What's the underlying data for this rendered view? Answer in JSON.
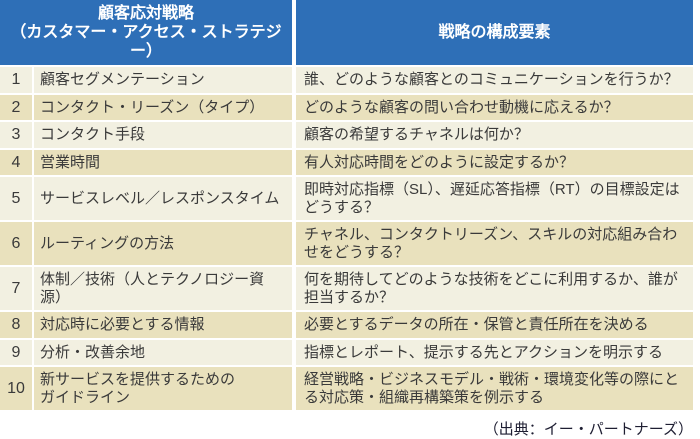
{
  "header": {
    "left_title": "顧客応対戦略\n（カスタマー・アクセス・ストラテジー）",
    "right_title": "戦略の構成要素"
  },
  "rows": [
    {
      "num": "1",
      "label": "顧客セグメンテーション",
      "detail": "誰、どのような顧客とのコミュニケーションを行うか？"
    },
    {
      "num": "2",
      "label": "コンタクト・リーズン（タイプ）",
      "detail": "どのような顧客の問い合わせ動機に応えるか？"
    },
    {
      "num": "3",
      "label": "コンタクト手段",
      "detail": "顧客の希望するチャネルは何か？"
    },
    {
      "num": "4",
      "label": "営業時間",
      "detail": "有人対応時間をどのように設定するか？"
    },
    {
      "num": "5",
      "label": "サービスレベル／レスポンスタイム",
      "detail": "即時対応指標（SL）、遅延応答指標（RT）の目標設定はどうする？"
    },
    {
      "num": "6",
      "label": "ルーティングの方法",
      "detail": "チャネル、コンタクトリーズン、スキルの対応組み合わせをどうする？"
    },
    {
      "num": "7",
      "label": "体制／技術（人とテクノロジー資源）",
      "detail": "何を期待してどのような技術をどこに利用するか、誰が担当するか？"
    },
    {
      "num": "8",
      "label": "対応時に必要とする情報",
      "detail": "必要とするデータの所在・保管と責任所在を決める"
    },
    {
      "num": "9",
      "label": "分析・改善余地",
      "detail": "指標とレポート、提示する先とアクションを明示する"
    },
    {
      "num": "10",
      "label": "新サービスを提供するための\nガイドライン",
      "detail": "経営戦略・ビジネスモデル・戦術・環境変化等の際にとる対応策・組織再構築策を例示する"
    }
  ],
  "footer": {
    "source": "（出典：イー・パートナーズ）"
  },
  "colors": {
    "header_bg": "#2e6fb7",
    "row_light": "#f2f0e1",
    "row_dark": "#e9e1bd",
    "separator": "#ffffff",
    "body_text": "#3a3a3a",
    "header_text": "#ffffff",
    "source_text": "#1e1e32"
  },
  "chart_data": {
    "type": "table",
    "title": "顧客応対戦略（カスタマー・アクセス・ストラテジー）",
    "columns": [
      "顧客応対戦略（カスタマー・アクセス・ストラテジー）",
      "戦略の構成要素"
    ],
    "rows": [
      [
        "1",
        "顧客セグメンテーション",
        "誰、どのような顧客とのコミュニケーションを行うか？"
      ],
      [
        "2",
        "コンタクト・リーズン（タイプ）",
        "どのような顧客の問い合わせ動機に応えるか？"
      ],
      [
        "3",
        "コンタクト手段",
        "顧客の希望するチャネルは何か？"
      ],
      [
        "4",
        "営業時間",
        "有人対応時間をどのように設定するか？"
      ],
      [
        "5",
        "サービスレベル／レスポンスタイム",
        "即時対応指標（SL）、遅延応答指標（RT）の目標設定はどうする？"
      ],
      [
        "6",
        "ルーティングの方法",
        "チャネル、コンタクトリーズン、スキルの対応組み合わせをどうする？"
      ],
      [
        "7",
        "体制／技術（人とテクノロジー資源）",
        "何を期待してどのような技術をどこに利用するか、誰が担当するか？"
      ],
      [
        "8",
        "対応時に必要とする情報",
        "必要とするデータの所在・保管と責任所在を決める"
      ],
      [
        "9",
        "分析・改善余地",
        "指標とレポート、提示する先とアクションを明示する"
      ],
      [
        "10",
        "新サービスを提供するためのガイドライン",
        "経営戦略・ビジネスモデル・戦術・環境変化等の際にとる対応策・組織再構築策を例示する"
      ]
    ],
    "annotations": [
      "（出典：イー・パートナーズ）"
    ],
    "layout": "2-column table with numbered rows, blue header band, alternating cream/tan row shading"
  }
}
